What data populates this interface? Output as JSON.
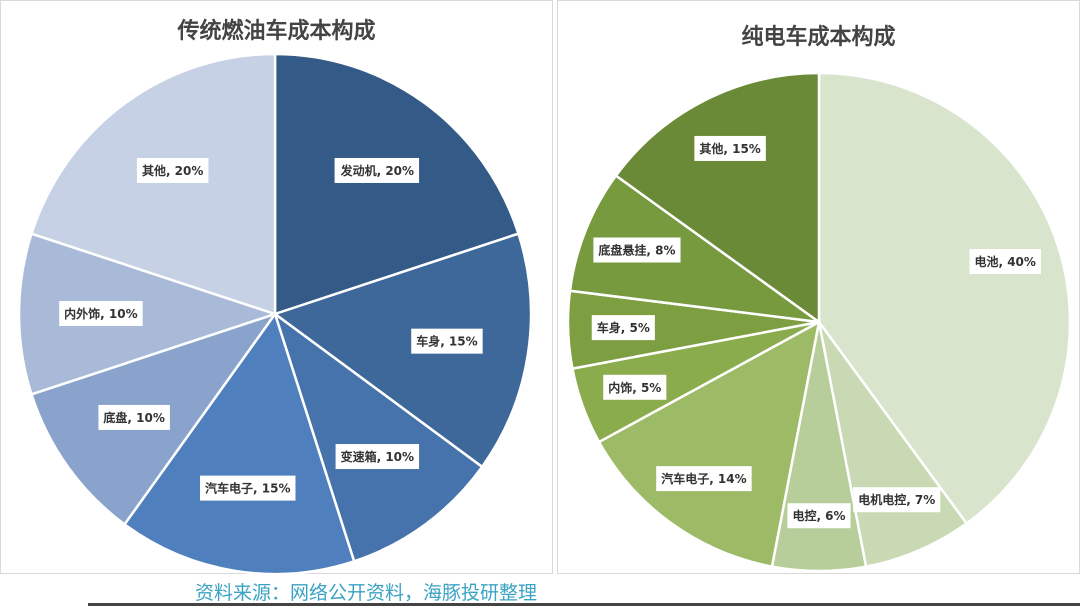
{
  "chart_data": [
    {
      "type": "pie",
      "title": "传统燃油车成本构成",
      "categories": [
        "发动机",
        "车身",
        "变速箱",
        "汽车电子",
        "底盘",
        "内外饰",
        "其他"
      ],
      "values": [
        20,
        15,
        10,
        15,
        10,
        10,
        20
      ],
      "labels": [
        "发动机, 20%",
        "车身, 15%",
        "变速箱, 10%",
        "汽车电子, 15%",
        "底盘, 10%",
        "内外饰, 10%",
        "其他, 20%"
      ],
      "colors": [
        "#345a87",
        "#3e679a",
        "#4773ac",
        "#4f7fbd",
        "#8aa3cc",
        "#a9b9d8",
        "#c6d1e5"
      ]
    },
    {
      "type": "pie",
      "title": "纯电车成本构成",
      "categories": [
        "电池",
        "电机电控",
        "电控",
        "汽车电子",
        "内饰",
        "车身",
        "底盘悬挂",
        "其他"
      ],
      "values": [
        40,
        7,
        6,
        14,
        5,
        5,
        8,
        15
      ],
      "labels": [
        "电池, 40%",
        "电机电控, 7%",
        "电控, 6%",
        "汽车电子, 14%",
        "内饰, 5%",
        "车身, 5%",
        "底盘悬挂, 8%",
        "其他, 15%"
      ],
      "colors": [
        "#d8e4cc",
        "#c8d9b4",
        "#b7cd9a",
        "#9dbb67",
        "#8aac4d",
        "#7d9f42",
        "#789a3f",
        "#6a8a38"
      ]
    }
  ],
  "source": "资料来源：网络公开资料，海豚投研整理"
}
